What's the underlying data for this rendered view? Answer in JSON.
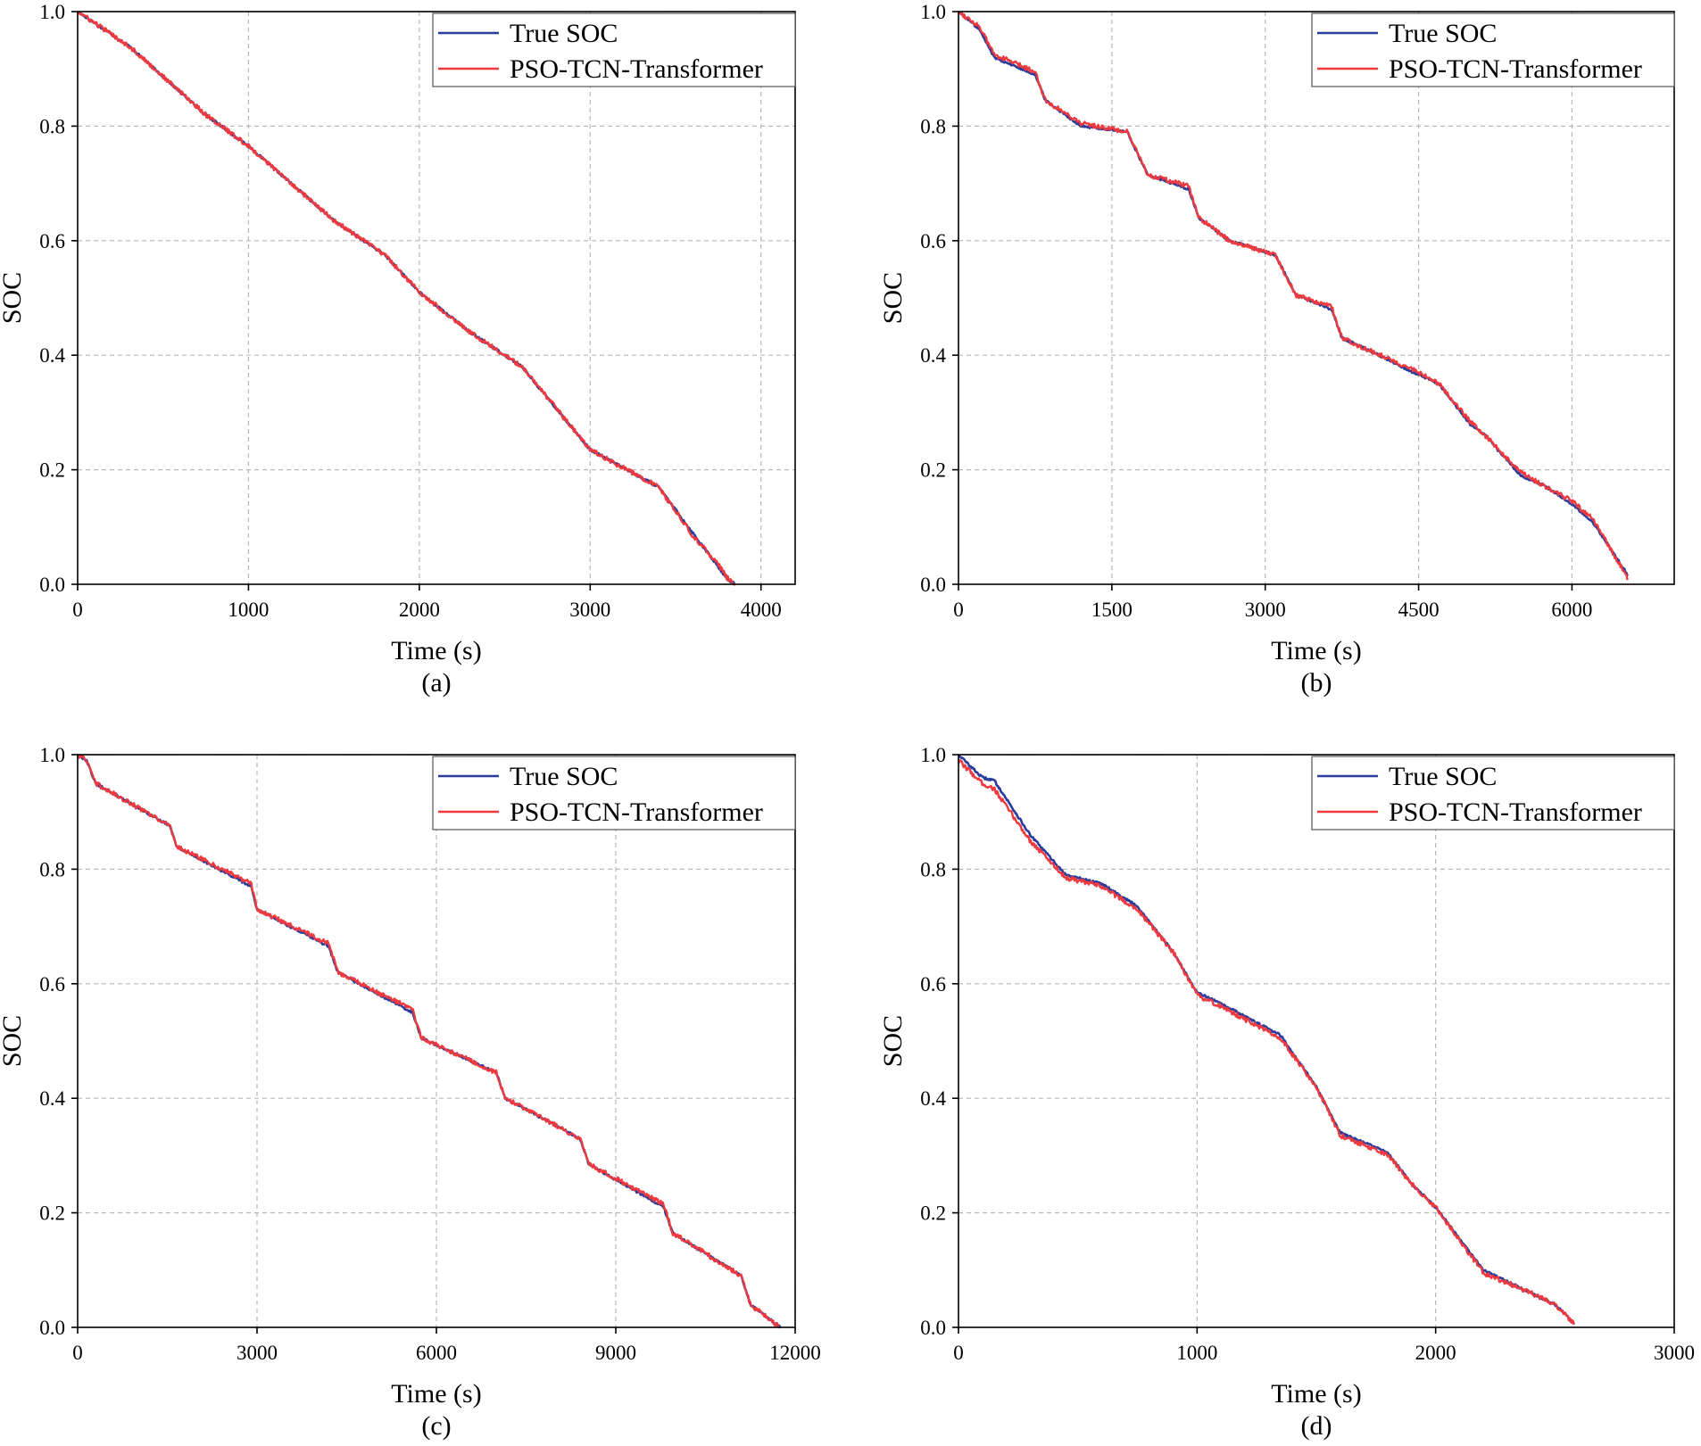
{
  "colors": {
    "true": "#2b3d9c",
    "pred": "#ee3a3f",
    "grid": "#b8b8b8",
    "axis": "#000000"
  },
  "chart_data": [
    {
      "type": "line",
      "caption": "(a)",
      "xlabel": "Time (s)",
      "ylabel": "SOC",
      "xlim": [
        0,
        4200
      ],
      "ylim": [
        0,
        1.0
      ],
      "xticks": [
        0,
        1000,
        2000,
        3000,
        4000
      ],
      "xtick_labels": [
        "0",
        "1000",
        "2000",
        "3000",
        "4000"
      ],
      "yticks": [
        0,
        0.2,
        0.4,
        0.6,
        0.8,
        1.0
      ],
      "ytick_labels": [
        "0.0",
        "0.2",
        "0.4",
        "0.6",
        "0.8",
        "1.0"
      ],
      "grid": true,
      "legend": [
        "True SOC",
        "PSO-TCN-Transformer"
      ],
      "legend_position": "top-right",
      "series": [
        {
          "name": "True SOC",
          "x": [
            0,
            300,
            750,
            1000,
            1500,
            1800,
            2000,
            2300,
            2600,
            3000,
            3400,
            3600,
            3750,
            3800,
            3850
          ],
          "values": [
            1.0,
            0.94,
            0.82,
            0.765,
            0.635,
            0.575,
            0.51,
            0.44,
            0.38,
            0.235,
            0.17,
            0.09,
            0.03,
            0.01,
            0.0
          ]
        },
        {
          "name": "PSO-TCN-Transformer",
          "x": [
            0,
            300,
            750,
            1000,
            1500,
            1800,
            2000,
            2300,
            2600,
            3000,
            3400,
            3600,
            3750,
            3800,
            3850
          ],
          "values": [
            1.0,
            0.94,
            0.82,
            0.765,
            0.635,
            0.575,
            0.51,
            0.44,
            0.38,
            0.235,
            0.17,
            0.085,
            0.035,
            0.012,
            0.0
          ]
        }
      ]
    },
    {
      "type": "line",
      "caption": "(b)",
      "xlabel": "Time (s)",
      "ylabel": "SOC",
      "xlim": [
        0,
        7000
      ],
      "ylim": [
        0,
        1.0
      ],
      "xticks": [
        0,
        1500,
        3000,
        4500,
        6000
      ],
      "xtick_labels": [
        "0",
        "1500",
        "3000",
        "4500",
        "6000"
      ],
      "yticks": [
        0,
        0.2,
        0.4,
        0.6,
        0.8,
        1.0
      ],
      "ytick_labels": [
        "0.0",
        "0.2",
        "0.4",
        "0.6",
        "0.8",
        "1.0"
      ],
      "grid": true,
      "legend": [
        "True SOC",
        "PSO-TCN-Transformer"
      ],
      "legend_position": "top-right",
      "series": [
        {
          "name": "True SOC",
          "x": [
            0,
            200,
            350,
            750,
            850,
            1200,
            1650,
            1850,
            2250,
            2350,
            2650,
            3100,
            3300,
            3650,
            3750,
            4000,
            4450,
            4700,
            5000,
            5150,
            5500,
            5750,
            6000,
            6200,
            6550
          ],
          "values": [
            1.0,
            0.97,
            0.92,
            0.89,
            0.845,
            0.8,
            0.79,
            0.715,
            0.69,
            0.64,
            0.6,
            0.575,
            0.505,
            0.48,
            0.43,
            0.41,
            0.37,
            0.35,
            0.28,
            0.26,
            0.19,
            0.17,
            0.14,
            0.11,
            0.015
          ]
        },
        {
          "name": "PSO-TCN-Transformer",
          "x": [
            0,
            200,
            350,
            750,
            850,
            1200,
            1650,
            1850,
            2250,
            2350,
            2650,
            3100,
            3300,
            3650,
            3750,
            4000,
            4450,
            4700,
            5000,
            5150,
            5500,
            5750,
            6000,
            6200,
            6550
          ],
          "values": [
            1.0,
            0.975,
            0.925,
            0.895,
            0.845,
            0.805,
            0.79,
            0.715,
            0.695,
            0.64,
            0.6,
            0.575,
            0.505,
            0.485,
            0.43,
            0.41,
            0.375,
            0.35,
            0.285,
            0.26,
            0.195,
            0.17,
            0.145,
            0.115,
            0.01
          ]
        }
      ]
    },
    {
      "type": "line",
      "caption": "(c)",
      "xlabel": "Time (s)",
      "ylabel": "SOC",
      "xlim": [
        0,
        12000
      ],
      "ylim": [
        0,
        1.0
      ],
      "xticks": [
        0,
        3000,
        6000,
        9000,
        12000
      ],
      "xtick_labels": [
        "0",
        "3000",
        "6000",
        "9000",
        "12000"
      ],
      "yticks": [
        0,
        0.2,
        0.4,
        0.6,
        0.8,
        1.0
      ],
      "ytick_labels": [
        "0.0",
        "0.2",
        "0.4",
        "0.6",
        "0.8",
        "1.0"
      ],
      "grid": true,
      "legend": [
        "True SOC",
        "PSO-TCN-Transformer"
      ],
      "legend_position": "top-right",
      "series": [
        {
          "name": "True SOC",
          "x": [
            0,
            150,
            300,
            1550,
            1650,
            2900,
            3000,
            4200,
            4350,
            5600,
            5750,
            7000,
            7150,
            8400,
            8550,
            9800,
            9950,
            11100,
            11250,
            11750
          ],
          "values": [
            1.0,
            0.99,
            0.95,
            0.875,
            0.84,
            0.77,
            0.73,
            0.665,
            0.62,
            0.55,
            0.505,
            0.445,
            0.4,
            0.33,
            0.285,
            0.21,
            0.165,
            0.09,
            0.04,
            0.0
          ]
        },
        {
          "name": "PSO-TCN-Transformer",
          "x": [
            0,
            150,
            300,
            1550,
            1650,
            2900,
            3000,
            4200,
            4350,
            5600,
            5750,
            7000,
            7150,
            8400,
            8550,
            9800,
            9950,
            11100,
            11250,
            11750
          ],
          "values": [
            1.0,
            0.99,
            0.95,
            0.875,
            0.84,
            0.775,
            0.73,
            0.67,
            0.62,
            0.555,
            0.505,
            0.445,
            0.4,
            0.33,
            0.285,
            0.215,
            0.165,
            0.09,
            0.04,
            0.0
          ]
        }
      ]
    },
    {
      "type": "line",
      "caption": "(d)",
      "xlabel": "Time (s)",
      "ylabel": "SOC",
      "xlim": [
        0,
        3000
      ],
      "ylim": [
        0,
        1.0
      ],
      "xticks": [
        0,
        1000,
        2000,
        3000
      ],
      "xtick_labels": [
        "0",
        "1000",
        "2000",
        "3000"
      ],
      "yticks": [
        0,
        0.2,
        0.4,
        0.6,
        0.8,
        1.0
      ],
      "ytick_labels": [
        "0.0",
        "0.2",
        "0.4",
        "0.6",
        "0.8",
        "1.0"
      ],
      "grid": true,
      "legend": [
        "True SOC",
        "PSO-TCN-Transformer"
      ],
      "legend_position": "top-right",
      "series": [
        {
          "name": "True SOC",
          "x": [
            0,
            100,
            150,
            300,
            450,
            600,
            750,
            900,
            1000,
            1100,
            1350,
            1500,
            1600,
            1800,
            1900,
            2000,
            2200,
            2400,
            2500,
            2550,
            2580
          ],
          "values": [
            1.0,
            0.96,
            0.955,
            0.86,
            0.79,
            0.775,
            0.735,
            0.655,
            0.585,
            0.565,
            0.51,
            0.42,
            0.34,
            0.305,
            0.25,
            0.21,
            0.1,
            0.06,
            0.04,
            0.02,
            0.005
          ]
        },
        {
          "name": "PSO-TCN-Transformer",
          "x": [
            0,
            100,
            150,
            300,
            450,
            600,
            750,
            900,
            1000,
            1100,
            1350,
            1500,
            1600,
            1800,
            1900,
            2000,
            2200,
            2400,
            2500,
            2550,
            2580
          ],
          "values": [
            0.99,
            0.95,
            0.94,
            0.85,
            0.785,
            0.77,
            0.73,
            0.655,
            0.58,
            0.56,
            0.505,
            0.42,
            0.335,
            0.3,
            0.25,
            0.21,
            0.095,
            0.06,
            0.04,
            0.02,
            0.005
          ]
        }
      ]
    }
  ]
}
